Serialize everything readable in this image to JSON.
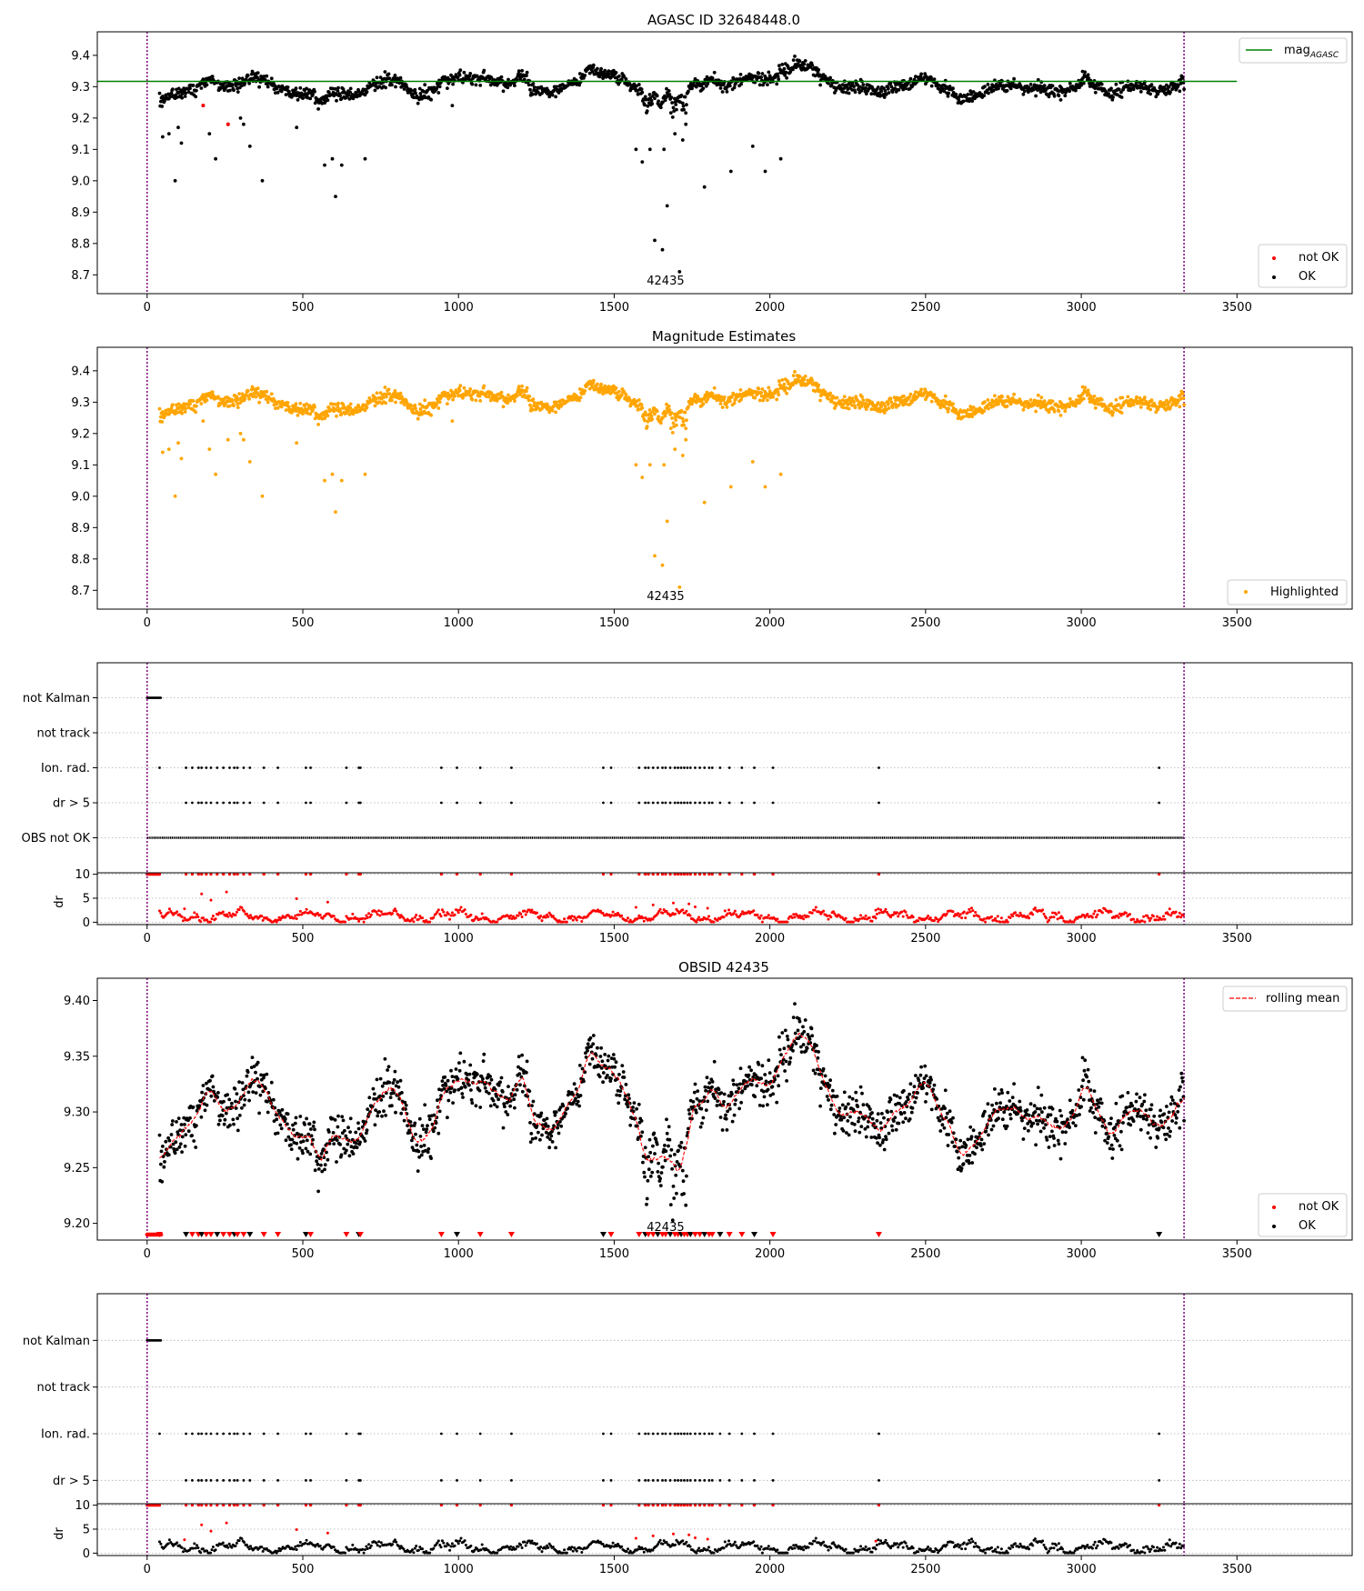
{
  "chart_data": [
    {
      "id": "agasc",
      "type": "scatter",
      "title": "AGASC ID 32648448.0",
      "xlim": [
        -160,
        3870
      ],
      "ylim": [
        8.64,
        9.475
      ],
      "xticks": [
        0,
        500,
        1000,
        1500,
        2000,
        2500,
        3000,
        3500
      ],
      "yticks": [
        8.7,
        8.8,
        8.9,
        9.0,
        9.1,
        9.2,
        9.3,
        9.4
      ],
      "ytick_decimals": 1,
      "hline": {
        "y": 9.317,
        "x": [
          -160,
          3500
        ],
        "color": "#008000"
      },
      "vlines": [
        0,
        3330
      ],
      "obsid_label": {
        "text": "42435",
        "x": 1665
      },
      "legend_top": {
        "label": "mag",
        "subscript": "AGASC",
        "color": "#008000"
      },
      "legend_bottom": [
        {
          "label": "not OK",
          "color": "#ff0000"
        },
        {
          "label": "OK",
          "color": "#000000"
        }
      ],
      "series": [
        {
          "name": "OK",
          "color": "#000000",
          "mode": "mag"
        },
        {
          "name": "not OK",
          "color": "#ff0000",
          "mode": "mag_red"
        }
      ],
      "outliers": [
        [
          50,
          9.14
        ],
        [
          70,
          9.15
        ],
        [
          90,
          9.0
        ],
        [
          100,
          9.17
        ],
        [
          110,
          9.12
        ],
        [
          180,
          9.24
        ],
        [
          200,
          9.15
        ],
        [
          220,
          9.07
        ],
        [
          260,
          9.18
        ],
        [
          300,
          9.2
        ],
        [
          310,
          9.18
        ],
        [
          330,
          9.11
        ],
        [
          370,
          9.0
        ],
        [
          480,
          9.17
        ],
        [
          570,
          9.05
        ],
        [
          595,
          9.07
        ],
        [
          605,
          8.95
        ],
        [
          625,
          9.05
        ],
        [
          700,
          9.07
        ],
        [
          980,
          9.24
        ],
        [
          1570,
          9.1
        ],
        [
          1590,
          9.06
        ],
        [
          1615,
          9.1
        ],
        [
          1630,
          8.81
        ],
        [
          1655,
          8.78
        ],
        [
          1660,
          9.1
        ],
        [
          1670,
          8.92
        ],
        [
          1695,
          9.15
        ],
        [
          1710,
          8.71
        ],
        [
          1720,
          9.13
        ],
        [
          1730,
          9.18
        ],
        [
          1790,
          8.98
        ],
        [
          1875,
          9.03
        ],
        [
          1945,
          9.11
        ],
        [
          1985,
          9.03
        ],
        [
          2035,
          9.07
        ]
      ]
    },
    {
      "id": "magest",
      "type": "scatter",
      "title": "Magnitude Estimates",
      "xlim": [
        -160,
        3870
      ],
      "ylim": [
        8.64,
        9.475
      ],
      "xticks": [
        0,
        500,
        1000,
        1500,
        2000,
        2500,
        3000,
        3500
      ],
      "yticks": [
        8.7,
        8.8,
        8.9,
        9.0,
        9.1,
        9.2,
        9.3,
        9.4
      ],
      "ytick_decimals": 1,
      "vlines": [
        0,
        3330
      ],
      "obsid_label": {
        "text": "42435",
        "x": 1665
      },
      "legend_bottom": [
        {
          "label": "Highlighted",
          "color": "#ffa500"
        }
      ],
      "series": [
        {
          "name": "Highlighted",
          "color": "#ffa500",
          "mode": "mag"
        }
      ]
    },
    {
      "id": "flags1",
      "type": "scatter",
      "xlim": [
        -160,
        3870
      ],
      "ylim": [
        0,
        6
      ],
      "xticks": [
        0,
        500,
        1000,
        1500,
        2000,
        2500,
        3000,
        3500
      ],
      "ytick_labels": [
        "not Kalman",
        "not track",
        "Ion. rad.",
        "dr > 5",
        "OBS not OK"
      ],
      "ytick_values": [
        5,
        4,
        3,
        2,
        1
      ],
      "vlines": [
        0,
        3330
      ],
      "series": [
        {
          "name": "flags",
          "color": "#000000",
          "mode": "flags",
          "obs_not_ok": true
        }
      ]
    },
    {
      "id": "dr1",
      "type": "scatter",
      "xlim": [
        -160,
        3870
      ],
      "ylim": [
        -0.5,
        10.3
      ],
      "xticks": [
        0,
        500,
        1000,
        1500,
        2000,
        2500,
        3000,
        3500
      ],
      "yticks": [
        0,
        5,
        10
      ],
      "ylabel": "dr",
      "vlines": [
        0,
        3330
      ],
      "series": [
        {
          "name": "dr",
          "color": "#ff0000",
          "mode": "dr"
        }
      ]
    },
    {
      "id": "obsid",
      "type": "scatter",
      "title": "OBSID 42435",
      "xlim": [
        -160,
        3870
      ],
      "ylim": [
        9.185,
        9.42
      ],
      "xticks": [
        0,
        500,
        1000,
        1500,
        2000,
        2500,
        3000,
        3500
      ],
      "yticks": [
        9.2,
        9.25,
        9.3,
        9.35,
        9.4
      ],
      "ytick_decimals": 2,
      "vlines": [
        0,
        3330
      ],
      "obsid_label": {
        "text": "42435",
        "x": 1665
      },
      "legend_top": {
        "label": "rolling mean",
        "color": "#ff0000",
        "dashed": true
      },
      "legend_bottom": [
        {
          "label": "not OK",
          "color": "#ff0000"
        },
        {
          "label": "OK",
          "color": "#000000"
        }
      ],
      "series": [
        {
          "name": "OK",
          "color": "#000000",
          "mode": "mag"
        },
        {
          "name": "rolling mean",
          "color": "#ff0000",
          "mode": "rolling"
        },
        {
          "name": "not OK",
          "color": "#ff0000",
          "mode": "triangles"
        }
      ]
    },
    {
      "id": "flags2",
      "type": "scatter",
      "xlim": [
        -160,
        3870
      ],
      "ylim": [
        1.5,
        6
      ],
      "xticks": [
        0,
        500,
        1000,
        1500,
        2000,
        2500,
        3000,
        3500
      ],
      "ytick_labels": [
        "not Kalman",
        "not track",
        "Ion. rad.",
        "dr > 5"
      ],
      "ytick_values": [
        5,
        4,
        3,
        2
      ],
      "vlines": [
        0,
        3330
      ],
      "series": [
        {
          "name": "flags",
          "color": "#000000",
          "mode": "flags",
          "obs_not_ok": false
        }
      ]
    },
    {
      "id": "dr2",
      "type": "scatter",
      "xlim": [
        -160,
        3870
      ],
      "ylim": [
        -0.5,
        10.3
      ],
      "xticks": [
        0,
        500,
        1000,
        1500,
        2000,
        2500,
        3000,
        3500
      ],
      "yticks": [
        0,
        5,
        10
      ],
      "ylabel": "dr",
      "vlines": [
        0,
        3330
      ],
      "series": [
        {
          "name": "dr",
          "color": "#000000",
          "mode": "dr"
        }
      ]
    }
  ],
  "curve": {
    "knots": [
      [
        0,
        9.24
      ],
      [
        40,
        9.25
      ],
      [
        90,
        9.28
      ],
      [
        140,
        9.29
      ],
      [
        200,
        9.32
      ],
      [
        250,
        9.3
      ],
      [
        300,
        9.31
      ],
      [
        340,
        9.33
      ],
      [
        380,
        9.32
      ],
      [
        420,
        9.3
      ],
      [
        470,
        9.28
      ],
      [
        520,
        9.28
      ],
      [
        560,
        9.255
      ],
      [
        600,
        9.28
      ],
      [
        640,
        9.27
      ],
      [
        690,
        9.28
      ],
      [
        730,
        9.31
      ],
      [
        790,
        9.32
      ],
      [
        830,
        9.3
      ],
      [
        870,
        9.27
      ],
      [
        910,
        9.28
      ],
      [
        960,
        9.32
      ],
      [
        1010,
        9.33
      ],
      [
        1070,
        9.33
      ],
      [
        1110,
        9.32
      ],
      [
        1160,
        9.31
      ],
      [
        1210,
        9.34
      ],
      [
        1240,
        9.29
      ],
      [
        1300,
        9.285
      ],
      [
        1350,
        9.3
      ],
      [
        1390,
        9.32
      ],
      [
        1420,
        9.36
      ],
      [
        1470,
        9.34
      ],
      [
        1520,
        9.33
      ],
      [
        1560,
        9.3
      ],
      [
        1600,
        9.28
      ],
      [
        1650,
        9.28
      ],
      [
        1700,
        9.29
      ],
      [
        1760,
        9.31
      ],
      [
        1820,
        9.32
      ],
      [
        1860,
        9.3
      ],
      [
        1890,
        9.32
      ],
      [
        1950,
        9.33
      ],
      [
        2000,
        9.32
      ],
      [
        2050,
        9.35
      ],
      [
        2090,
        9.37
      ],
      [
        2130,
        9.36
      ],
      [
        2170,
        9.33
      ],
      [
        2210,
        9.3
      ],
      [
        2260,
        9.3
      ],
      [
        2310,
        9.3
      ],
      [
        2360,
        9.28
      ],
      [
        2400,
        9.3
      ],
      [
        2450,
        9.31
      ],
      [
        2500,
        9.33
      ],
      [
        2540,
        9.3
      ],
      [
        2580,
        9.29
      ],
      [
        2610,
        9.255
      ],
      [
        2650,
        9.27
      ],
      [
        2690,
        9.28
      ],
      [
        2720,
        9.305
      ],
      [
        2780,
        9.305
      ],
      [
        2830,
        9.29
      ],
      [
        2880,
        9.3
      ],
      [
        2930,
        9.285
      ],
      [
        2980,
        9.295
      ],
      [
        3010,
        9.33
      ],
      [
        3050,
        9.3
      ],
      [
        3100,
        9.28
      ],
      [
        3150,
        9.3
      ],
      [
        3200,
        9.3
      ],
      [
        3250,
        9.29
      ],
      [
        3330,
        9.31
      ]
    ],
    "n_points": 3330,
    "noise": 0.0105,
    "dips": [
      [
        1610,
        9.23
      ],
      [
        1650,
        9.24
      ],
      [
        1690,
        9.22
      ],
      [
        1725,
        9.23
      ]
    ]
  },
  "flag_samples": {
    "not_kalman_range": [
      0,
      45
    ],
    "event_xs": [
      40,
      125,
      145,
      165,
      175,
      190,
      205,
      225,
      245,
      265,
      280,
      290,
      310,
      330,
      375,
      420,
      510,
      525,
      640,
      680,
      685,
      945,
      995,
      1070,
      1170,
      1465,
      1490,
      1580,
      1600,
      1610,
      1625,
      1640,
      1655,
      1665,
      1680,
      1695,
      1705,
      1715,
      1725,
      1735,
      1745,
      1760,
      1775,
      1790,
      1805,
      1815,
      1840,
      1870,
      1910,
      1950,
      2010,
      2350,
      3250
    ]
  }
}
